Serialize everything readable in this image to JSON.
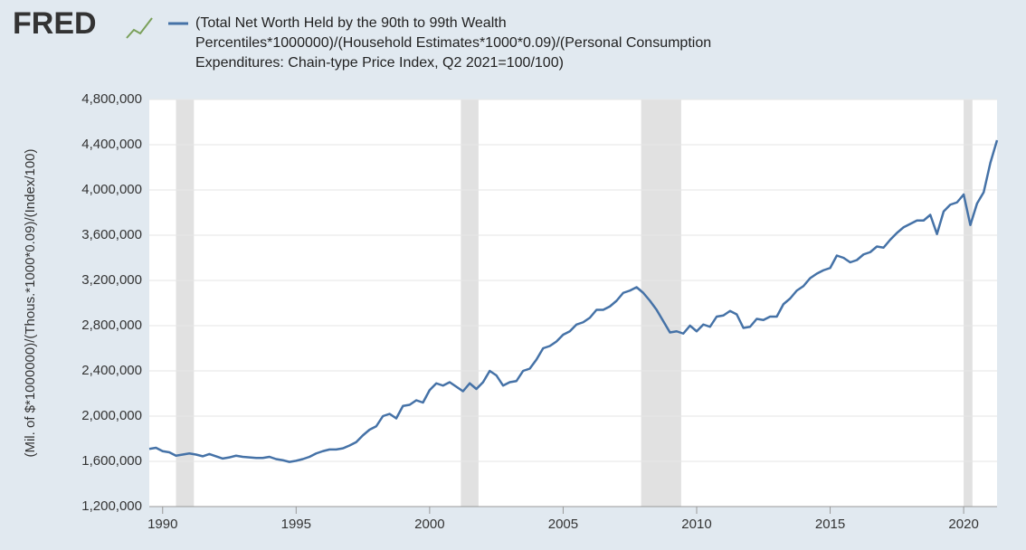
{
  "logo": "FRED",
  "chart_data": {
    "type": "line",
    "legend": "(Total Net Worth Held by the 90th to 99th Wealth Percentiles*1000000)/(Household Estimates*1000*0.09)/(Personal Consumption Expenditures: Chain-type Price Index, Q2 2021=100/100)",
    "y_label": "(Mil. of $*1000000)/(Thous.*1000*0.09)/(Index/100)",
    "xlim": [
      1989.5,
      2021.25
    ],
    "xticks": [
      1990,
      1995,
      2000,
      2005,
      2010,
      2015,
      2020
    ],
    "ylim": [
      1200000,
      4800000
    ],
    "yticks": [
      {
        "value": 1200000,
        "label": "1,200,000"
      },
      {
        "value": 1600000,
        "label": "1,600,000"
      },
      {
        "value": 2000000,
        "label": "2,000,000"
      },
      {
        "value": 2400000,
        "label": "2,400,000"
      },
      {
        "value": 2800000,
        "label": "2,800,000"
      },
      {
        "value": 3200000,
        "label": "3,200,000"
      },
      {
        "value": 3600000,
        "label": "3,600,000"
      },
      {
        "value": 4000000,
        "label": "4,000,000"
      },
      {
        "value": 4400000,
        "label": "4,400,000"
      },
      {
        "value": 4800000,
        "label": "4,800,000"
      }
    ],
    "grid": true,
    "recession_color": "#e1e1e1",
    "recessions": [
      [
        1990.5,
        1991.17
      ],
      [
        2001.17,
        2001.83
      ],
      [
        2007.92,
        2009.42
      ],
      [
        2020.0,
        2020.33
      ]
    ],
    "x": [
      1989.5,
      1989.75,
      1990,
      1990.25,
      1990.5,
      1990.75,
      1991,
      1991.25,
      1991.5,
      1991.75,
      1992,
      1992.25,
      1992.5,
      1992.75,
      1993,
      1993.25,
      1993.5,
      1993.75,
      1994,
      1994.25,
      1994.5,
      1994.75,
      1995,
      1995.25,
      1995.5,
      1995.75,
      1996,
      1996.25,
      1996.5,
      1996.75,
      1997,
      1997.25,
      1997.5,
      1997.75,
      1998,
      1998.25,
      1998.5,
      1998.75,
      1999,
      1999.25,
      1999.5,
      1999.75,
      2000,
      2000.25,
      2000.5,
      2000.75,
      2001,
      2001.25,
      2001.5,
      2001.75,
      2002,
      2002.25,
      2002.5,
      2002.75,
      2003,
      2003.25,
      2003.5,
      2003.75,
      2004,
      2004.25,
      2004.5,
      2004.75,
      2005,
      2005.25,
      2005.5,
      2005.75,
      2006,
      2006.25,
      2006.5,
      2006.75,
      2007,
      2007.25,
      2007.5,
      2007.75,
      2008,
      2008.25,
      2008.5,
      2008.75,
      2009,
      2009.25,
      2009.5,
      2009.75,
      2010,
      2010.25,
      2010.5,
      2010.75,
      2011,
      2011.25,
      2011.5,
      2011.75,
      2012,
      2012.25,
      2012.5,
      2012.75,
      2013,
      2013.25,
      2013.5,
      2013.75,
      2014,
      2014.25,
      2014.5,
      2014.75,
      2015,
      2015.25,
      2015.5,
      2015.75,
      2016,
      2016.25,
      2016.5,
      2016.75,
      2017,
      2017.25,
      2017.5,
      2017.75,
      2018,
      2018.25,
      2018.5,
      2018.75,
      2019,
      2019.25,
      2019.5,
      2019.75,
      2020,
      2020.25,
      2020.5,
      2020.75,
      2021,
      2021.25
    ],
    "series": [
      {
        "color": "#4572a7",
        "values": [
          1710000,
          1720000,
          1690000,
          1680000,
          1650000,
          1660000,
          1670000,
          1660000,
          1645000,
          1665000,
          1645000,
          1625000,
          1635000,
          1650000,
          1640000,
          1635000,
          1630000,
          1630000,
          1640000,
          1620000,
          1610000,
          1595000,
          1605000,
          1620000,
          1640000,
          1670000,
          1690000,
          1705000,
          1705000,
          1715000,
          1740000,
          1770000,
          1830000,
          1880000,
          1910000,
          2000000,
          2020000,
          1980000,
          2090000,
          2100000,
          2140000,
          2120000,
          2230000,
          2290000,
          2270000,
          2300000,
          2260000,
          2220000,
          2290000,
          2240000,
          2300000,
          2400000,
          2360000,
          2270000,
          2300000,
          2310000,
          2400000,
          2420000,
          2500000,
          2600000,
          2620000,
          2660000,
          2720000,
          2750000,
          2810000,
          2830000,
          2870000,
          2940000,
          2940000,
          2970000,
          3020000,
          3090000,
          3110000,
          3140000,
          3090000,
          3020000,
          2940000,
          2840000,
          2740000,
          2750000,
          2730000,
          2800000,
          2750000,
          2810000,
          2790000,
          2880000,
          2890000,
          2930000,
          2900000,
          2780000,
          2790000,
          2860000,
          2850000,
          2880000,
          2880000,
          2990000,
          3040000,
          3110000,
          3150000,
          3220000,
          3260000,
          3290000,
          3310000,
          3420000,
          3400000,
          3360000,
          3380000,
          3430000,
          3450000,
          3500000,
          3490000,
          3560000,
          3620000,
          3670000,
          3700000,
          3730000,
          3730000,
          3780000,
          3610000,
          3810000,
          3870000,
          3890000,
          3960000,
          3690000,
          3880000,
          3980000,
          4240000,
          4440000
        ]
      }
    ]
  }
}
